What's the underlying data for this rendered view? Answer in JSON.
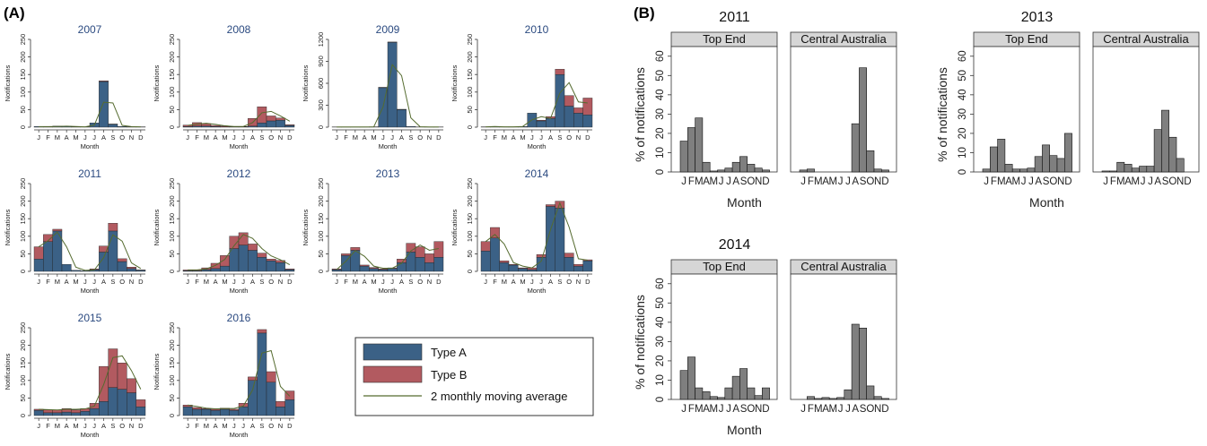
{
  "panel_a_label": "(A)",
  "panel_b_label": "(B)",
  "chart_data": [
    {
      "type": "bar",
      "panel": "(A)",
      "stacked": true,
      "y_axis_label": "Notifications",
      "x_axis_label": "Month",
      "month_ticks": [
        "J",
        "F",
        "M",
        "A",
        "M",
        "J",
        "J",
        "A",
        "S",
        "O",
        "N",
        "D"
      ],
      "legend": [
        "Type A",
        "Type B",
        "2 monthly moving average"
      ],
      "legend_position": "bottom-right",
      "colors": {
        "type_a": "#3b6186",
        "type_b": "#b25a60",
        "moving_avg": "#556b2f"
      },
      "subplots": [
        {
          "title": "2007",
          "ylim": [
            0,
            250
          ],
          "yticks": [
            "0",
            "50",
            "100",
            "150",
            "200",
            "250"
          ],
          "type_a": [
            2,
            1,
            3,
            3,
            1,
            1,
            12,
            130,
            8,
            2,
            1,
            1
          ],
          "type_b": [
            0,
            0,
            0,
            0,
            0,
            0,
            0,
            2,
            1,
            0,
            0,
            0
          ],
          "moving_avg": [
            1.5,
            1.5,
            2,
            3,
            2,
            1,
            6,
            71,
            69,
            5,
            1.5,
            1
          ]
        },
        {
          "title": "2008",
          "ylim": [
            0,
            250
          ],
          "yticks": [
            "0",
            "50",
            "100",
            "150",
            "200",
            "250"
          ],
          "type_a": [
            2,
            3,
            3,
            2,
            1,
            1,
            1,
            3,
            12,
            18,
            20,
            5
          ],
          "type_b": [
            4,
            10,
            7,
            3,
            2,
            1,
            1,
            22,
            46,
            14,
            6,
            2
          ],
          "moving_avg": [
            5,
            9,
            11,
            8,
            4,
            2,
            2,
            13,
            41,
            45,
            32,
            17
          ]
        },
        {
          "title": "2009",
          "ylim": [
            0,
            1200
          ],
          "yticks": [
            "0",
            "300",
            "600",
            "900",
            "1200"
          ],
          "type_a": [
            3,
            3,
            3,
            3,
            5,
            540,
            1160,
            240,
            10,
            3,
            3,
            3
          ],
          "type_b": [
            0,
            0,
            0,
            0,
            0,
            5,
            5,
            5,
            0,
            0,
            0,
            0
          ],
          "moving_avg": [
            3,
            3,
            3,
            3,
            4,
            276,
            855,
            705,
            127,
            6,
            3,
            3
          ]
        },
        {
          "title": "2010",
          "ylim": [
            0,
            250
          ],
          "yticks": [
            "0",
            "50",
            "100",
            "150",
            "200",
            "250"
          ],
          "type_a": [
            1,
            2,
            1,
            1,
            2,
            40,
            18,
            25,
            150,
            60,
            40,
            35
          ],
          "type_b": [
            0,
            0,
            0,
            0,
            0,
            0,
            2,
            5,
            15,
            30,
            15,
            48
          ],
          "moving_avg": [
            1,
            2,
            1,
            1,
            2,
            21,
            30,
            25,
            97,
            127,
            72,
            69
          ]
        },
        {
          "title": "2011",
          "ylim": [
            0,
            250
          ],
          "yticks": [
            "0",
            "50",
            "100",
            "150",
            "200",
            "250"
          ],
          "type_a": [
            35,
            85,
            115,
            20,
            3,
            2,
            5,
            55,
            115,
            28,
            8,
            3
          ],
          "type_b": [
            35,
            20,
            5,
            0,
            0,
            0,
            2,
            17,
            22,
            8,
            4,
            1
          ],
          "moving_avg": [
            70,
            87,
            112,
            70,
            12,
            3,
            4,
            39,
            104,
            86,
            24,
            8
          ]
        },
        {
          "title": "2012",
          "ylim": [
            0,
            250
          ],
          "yticks": [
            "0",
            "50",
            "100",
            "150",
            "200",
            "250"
          ],
          "type_a": [
            2,
            2,
            5,
            8,
            15,
            65,
            75,
            60,
            40,
            30,
            25,
            5
          ],
          "type_b": [
            2,
            2,
            5,
            15,
            30,
            35,
            35,
            18,
            12,
            5,
            6,
            2
          ],
          "moving_avg": [
            4,
            4,
            7,
            17,
            34,
            73,
            105,
            94,
            65,
            44,
            33,
            19
          ]
        },
        {
          "title": "2013",
          "ylim": [
            0,
            250
          ],
          "yticks": [
            "0",
            "50",
            "100",
            "150",
            "200",
            "250"
          ],
          "type_a": [
            5,
            45,
            60,
            15,
            8,
            5,
            8,
            25,
            55,
            40,
            25,
            40
          ],
          "type_b": [
            2,
            5,
            8,
            3,
            3,
            2,
            2,
            10,
            25,
            30,
            25,
            45
          ],
          "moving_avg": [
            5,
            29,
            59,
            43,
            15,
            9,
            9,
            23,
            58,
            75,
            60,
            65
          ]
        },
        {
          "title": "2014",
          "ylim": [
            0,
            250
          ],
          "yticks": [
            "0",
            "50",
            "100",
            "150",
            "200",
            "250"
          ],
          "type_a": [
            58,
            95,
            25,
            18,
            8,
            5,
            40,
            185,
            180,
            40,
            15,
            30
          ],
          "type_b": [
            27,
            30,
            5,
            2,
            2,
            5,
            8,
            5,
            20,
            12,
            5,
            3
          ],
          "moving_avg": [
            85,
            105,
            78,
            25,
            15,
            10,
            29,
            119,
            195,
            126,
            36,
            32
          ]
        },
        {
          "title": "2015",
          "ylim": [
            0,
            250
          ],
          "yticks": [
            "0",
            "50",
            "100",
            "150",
            "200",
            "250"
          ],
          "type_a": [
            15,
            8,
            8,
            10,
            8,
            12,
            20,
            40,
            80,
            75,
            65,
            25
          ],
          "type_b": [
            3,
            8,
            8,
            10,
            8,
            8,
            15,
            100,
            110,
            75,
            40,
            20
          ],
          "moving_avg": [
            18,
            17,
            16,
            18,
            18,
            19,
            27,
            88,
            165,
            170,
            128,
            75
          ]
        },
        {
          "title": "2016",
          "ylim": [
            0,
            250
          ],
          "yticks": [
            "0",
            "50",
            "100",
            "150",
            "200",
            "250"
          ],
          "type_a": [
            25,
            18,
            18,
            15,
            18,
            15,
            25,
            100,
            235,
            95,
            25,
            45
          ],
          "type_b": [
            5,
            5,
            2,
            3,
            3,
            3,
            10,
            10,
            10,
            30,
            15,
            25
          ],
          "moving_avg": [
            30,
            26,
            21,
            19,
            20,
            20,
            27,
            73,
            178,
            185,
            83,
            55
          ]
        }
      ]
    },
    {
      "type": "bar",
      "panel": "(B)",
      "y_axis_label": "% of notifications",
      "x_axis_label": "Month",
      "month_ticks": [
        "J",
        "F",
        "M",
        "A",
        "M",
        "J",
        "J",
        "A",
        "S",
        "O",
        "N",
        "D"
      ],
      "ylim": [
        0,
        65
      ],
      "yticks": [
        "0",
        "10",
        "20",
        "30",
        "40",
        "50",
        "60"
      ],
      "bar_color": "#7f7f7f",
      "strip_color": "#d6d6d6",
      "groups": [
        {
          "title": "2011",
          "facets": [
            {
              "name": "Top End",
              "values": [
                16,
                23,
                28,
                5,
                0.5,
                1,
                2,
                5,
                8,
                4,
                2,
                1
              ]
            },
            {
              "name": "Central Australia",
              "values": [
                1,
                1.5,
                0,
                0,
                0,
                0,
                0,
                25,
                54,
                11,
                1.5,
                1
              ]
            }
          ]
        },
        {
          "title": "2013",
          "facets": [
            {
              "name": "Top End",
              "values": [
                1.5,
                13,
                17,
                4,
                1.5,
                1.5,
                2,
                8,
                14,
                8.5,
                7,
                20
              ]
            },
            {
              "name": "Central Australia",
              "values": [
                0.5,
                0.5,
                5,
                4,
                2,
                3,
                3,
                22,
                32,
                18,
                7,
                0
              ]
            }
          ]
        },
        {
          "title": "2014",
          "facets": [
            {
              "name": "Top End",
              "values": [
                15,
                22,
                6,
                4,
                1.5,
                1,
                6,
                12,
                16,
                6,
                2,
                6
              ]
            },
            {
              "name": "Central Australia",
              "values": [
                0,
                1.5,
                0.5,
                1,
                0.5,
                1,
                5,
                39,
                37,
                7,
                1.5,
                0.5
              ]
            }
          ]
        }
      ]
    }
  ]
}
